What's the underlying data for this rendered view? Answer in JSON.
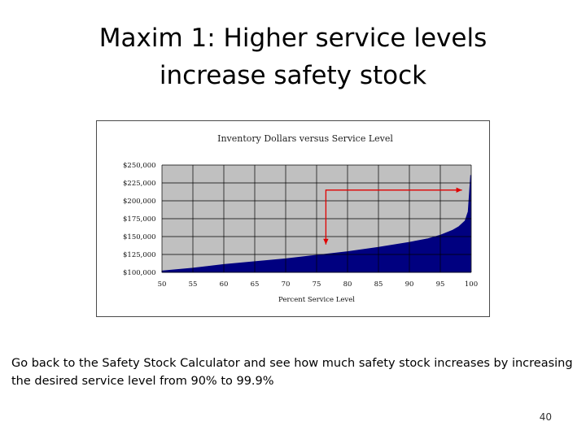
{
  "slide": {
    "title_line1": "Maxim 1: Higher service levels",
    "title_line2": "increase safety stock",
    "caption": "Go back to the Safety Stock Calculator and see how much safety stock increases by increasing the desired service level from 90% to 99.9%",
    "page_number": "40"
  },
  "colors": {
    "plot_background": "#c0c0c0",
    "area_fill": "#000080",
    "annotation_arrow": "#e00000",
    "gridline": "#000000"
  },
  "chart_data": {
    "type": "area",
    "title": "Inventory Dollars versus Service Level",
    "xlabel": "Percent Service Level",
    "ylabel": "",
    "xlim": [
      50,
      100
    ],
    "ylim": [
      100000,
      250000
    ],
    "x_ticks": [
      "50",
      "55",
      "60",
      "65",
      "70",
      "75",
      "80",
      "85",
      "90",
      "95",
      "100"
    ],
    "y_ticks": [
      "$250,000",
      "$225,000",
      "$200,000",
      "$175,000",
      "$150,000",
      "$125,000",
      "$100,000"
    ],
    "grid": true,
    "legend": "none",
    "series": [
      {
        "x": [
          50,
          55,
          60,
          65,
          70,
          75,
          80,
          85,
          90,
          93,
          95,
          97,
          98,
          99,
          99.5,
          99.9
        ],
        "y": [
          102000,
          106000,
          111000,
          115000,
          119000,
          124000,
          129000,
          135000,
          142000,
          147000,
          152000,
          159000,
          164000,
          172000,
          185000,
          236000
        ]
      }
    ],
    "annotation": {
      "type": "arrow-path",
      "points": [
        {
          "x": 98.5,
          "y": 215000
        },
        {
          "x": 76.5,
          "y": 215000
        },
        {
          "x": 76.5,
          "y": 139000
        }
      ]
    }
  }
}
